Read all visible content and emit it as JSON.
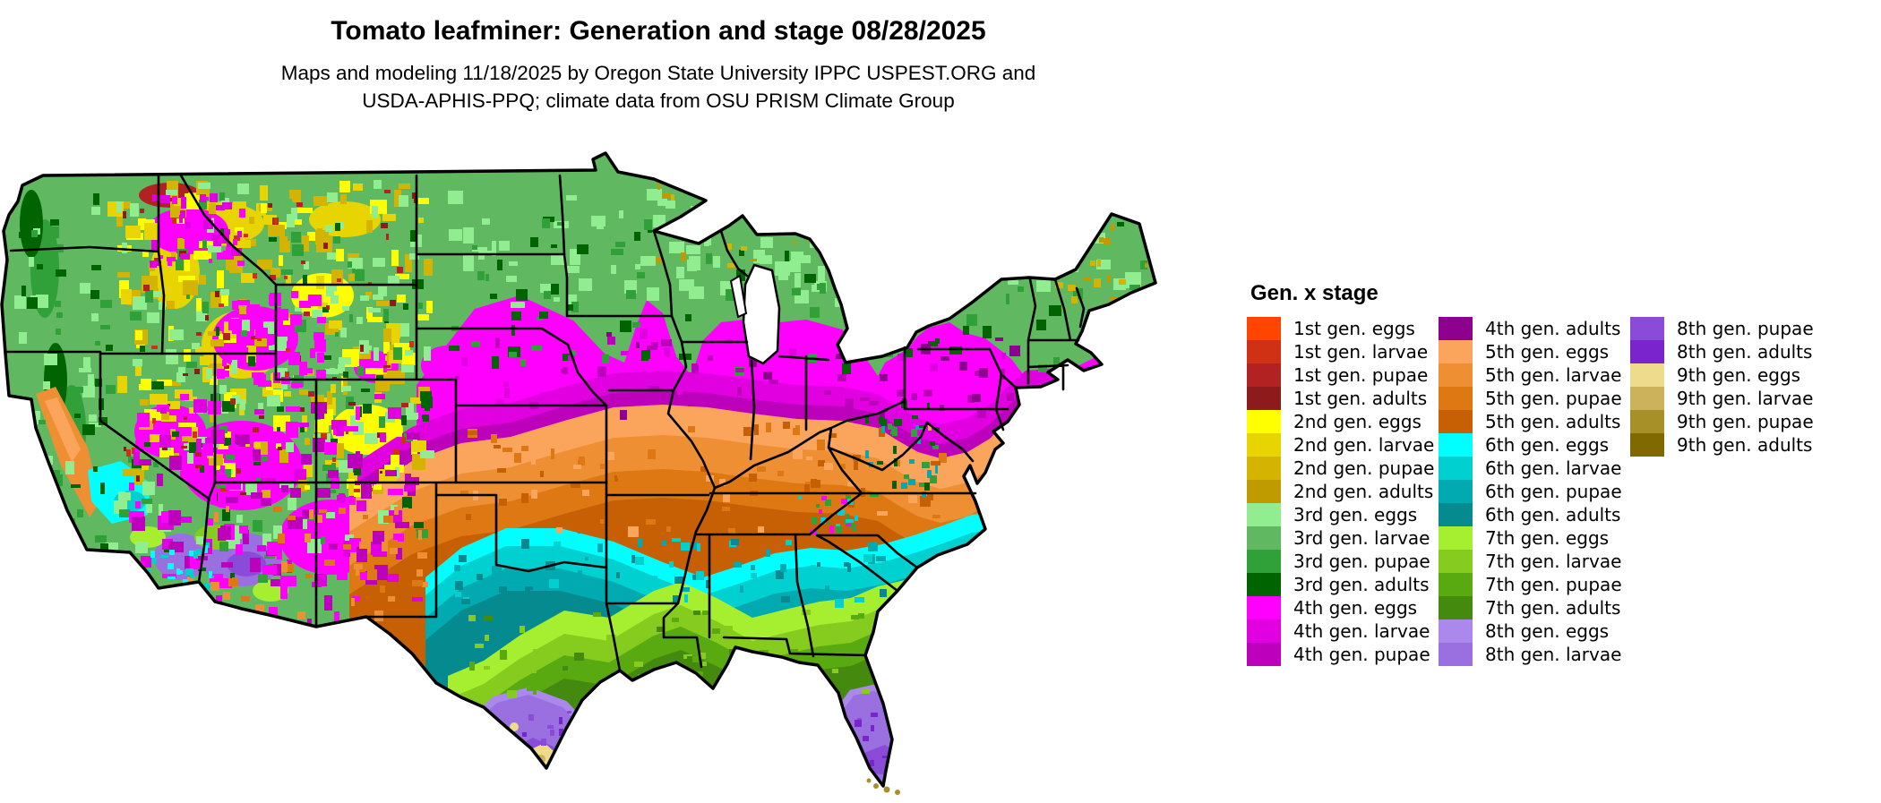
{
  "header": {
    "title": "Tomato leafminer: Generation and stage 08/28/2025",
    "subtitle_line1": "Maps and modeling 11/18/2025 by Oregon State University IPPC USPEST.ORG and",
    "subtitle_line2": "USDA-APHIS-PPQ; climate data from OSU PRISM Climate Group"
  },
  "legend": {
    "title": "Gen. x stage",
    "column_sizes": [
      15,
      15,
      6
    ],
    "entries": [
      {
        "key": "1e",
        "label": "1st gen. eggs",
        "color": "#FF4500"
      },
      {
        "key": "1l",
        "label": "1st gen. larvae",
        "color": "#D03014"
      },
      {
        "key": "1p",
        "label": "1st gen. pupae",
        "color": "#B22222"
      },
      {
        "key": "1a",
        "label": "1st gen. adults",
        "color": "#8E1B1B"
      },
      {
        "key": "2e",
        "label": "2nd gen. eggs",
        "color": "#FFFF00"
      },
      {
        "key": "2l",
        "label": "2nd gen. larvae",
        "color": "#E8D400"
      },
      {
        "key": "2p",
        "label": "2nd gen. pupae",
        "color": "#D4B400"
      },
      {
        "key": "2a",
        "label": "2nd gen. adults",
        "color": "#BF9B00"
      },
      {
        "key": "3e",
        "label": "3rd gen. eggs",
        "color": "#90EE90"
      },
      {
        "key": "3l",
        "label": "3rd gen. larvae",
        "color": "#60B860"
      },
      {
        "key": "3p",
        "label": "3rd gen. pupae",
        "color": "#30A038"
      },
      {
        "key": "3a",
        "label": "3rd gen. adults",
        "color": "#006400"
      },
      {
        "key": "4e",
        "label": "4th gen. eggs",
        "color": "#FF00FF"
      },
      {
        "key": "4l",
        "label": "4th gen. larvae",
        "color": "#E000E0"
      },
      {
        "key": "4p",
        "label": "4th gen. pupae",
        "color": "#BC00BC"
      },
      {
        "key": "4a",
        "label": "4th gen. adults",
        "color": "#8E008E"
      },
      {
        "key": "5e",
        "label": "5th gen. eggs",
        "color": "#FBA55C"
      },
      {
        "key": "5l",
        "label": "5th gen. larvae",
        "color": "#EF8F33"
      },
      {
        "key": "5p",
        "label": "5th gen. pupae",
        "color": "#DE7812"
      },
      {
        "key": "5a",
        "label": "5th gen. adults",
        "color": "#C75F04"
      },
      {
        "key": "6e",
        "label": "6th gen. eggs",
        "color": "#00FFFF"
      },
      {
        "key": "6l",
        "label": "6th gen. larvae",
        "color": "#00D0D0"
      },
      {
        "key": "6p",
        "label": "6th gen. pupae",
        "color": "#00AAB0"
      },
      {
        "key": "6a",
        "label": "6th gen. adults",
        "color": "#058A90"
      },
      {
        "key": "7e",
        "label": "7th gen. eggs",
        "color": "#A5EE30"
      },
      {
        "key": "7l",
        "label": "7th gen. larvae",
        "color": "#86CC1E"
      },
      {
        "key": "7p",
        "label": "7th gen. pupae",
        "color": "#58AA10"
      },
      {
        "key": "7a",
        "label": "7th gen. adults",
        "color": "#448A0E"
      },
      {
        "key": "8e",
        "label": "8th gen. eggs",
        "color": "#AA88EC"
      },
      {
        "key": "8l",
        "label": "8th gen. larvae",
        "color": "#9A70E0"
      },
      {
        "key": "8p",
        "label": "8th gen. pupae",
        "color": "#8A4CD8"
      },
      {
        "key": "8a",
        "label": "8th gen. adults",
        "color": "#7A24CE"
      },
      {
        "key": "9e",
        "label": "9th gen. eggs",
        "color": "#EEDC8C"
      },
      {
        "key": "9l",
        "label": "9th gen. larvae",
        "color": "#CCB25A"
      },
      {
        "key": "9p",
        "label": "9th gen. pupae",
        "color": "#A89028"
      },
      {
        "key": "9a",
        "label": "9th gen. adults",
        "color": "#806A00"
      }
    ]
  },
  "map": {
    "region": "Contiguous United States",
    "base_stage_key": "3l",
    "border_color": "#000000",
    "water_color": "#ffffff",
    "band_stage_keys_north_to_south": [
      "3l",
      "4e",
      "4l",
      "4p",
      "5e",
      "5l",
      "5p",
      "5a",
      "6e",
      "6l",
      "6p",
      "6a",
      "7e",
      "7l",
      "7p",
      "7a",
      "8e",
      "8l",
      "8p",
      "9e",
      "9l"
    ]
  }
}
